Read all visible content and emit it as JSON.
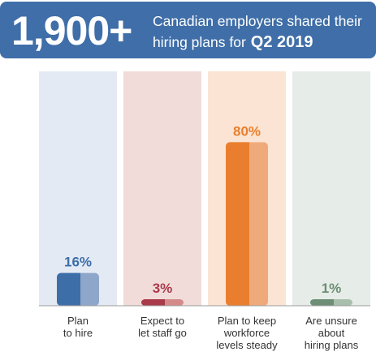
{
  "header": {
    "headline_number": "1,900+",
    "subtitle_line1": "Canadian employers shared their",
    "subtitle_line2": "hiring plans for",
    "subtitle_highlight": "Q2 2019"
  },
  "chart_data": {
    "type": "bar",
    "title": "",
    "xlabel": "",
    "ylabel": "",
    "ylim": [
      0,
      100
    ],
    "grid": false,
    "legend": "none",
    "categories": [
      [
        "Plan",
        "to hire"
      ],
      [
        "Expect to",
        "let staff go"
      ],
      [
        "Plan to keep",
        "workforce",
        "levels steady"
      ],
      [
        "Are unsure",
        "about",
        "hiring plans"
      ]
    ],
    "values": [
      16,
      3,
      80,
      1
    ],
    "value_labels": [
      "16%",
      "3%",
      "80%",
      "1%"
    ],
    "colors": {
      "bar_dark": [
        "#3d6ea8",
        "#a83a4a",
        "#e97f2e",
        "#6d8e74"
      ],
      "bar_light": [
        "#8ea6c9",
        "#d58a8a",
        "#efaa7c",
        "#a9bfae"
      ],
      "column_bg": [
        "#e4eaf4",
        "#f1dcda",
        "#fbe4d3",
        "#e6ece7"
      ],
      "label_text": [
        "#3d6ea8",
        "#a83a4a",
        "#e97f2e",
        "#6d8e74"
      ]
    }
  }
}
